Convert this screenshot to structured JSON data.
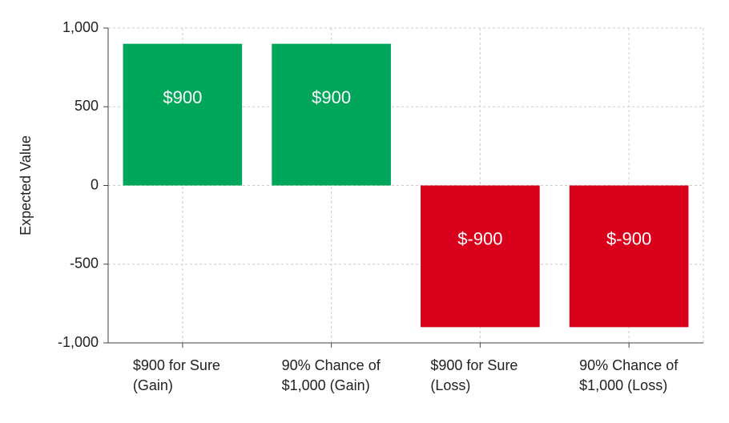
{
  "chart_data": {
    "type": "bar",
    "ylabel": "Expected Value",
    "xlabel": "",
    "ylim": [
      -1000,
      1000
    ],
    "yticks": [
      1000,
      500,
      0,
      -500,
      -1000
    ],
    "ytick_labels": [
      "1,000",
      "500",
      "0",
      "-500",
      "-1,000"
    ],
    "grid": true,
    "categories": [
      [
        "$900 for Sure",
        "(Gain)"
      ],
      [
        "90% Chance of",
        "$1,000 (Gain)"
      ],
      [
        "$900 for Sure",
        "(Loss)"
      ],
      [
        "90% Chance of",
        "$1,000 (Loss)"
      ]
    ],
    "values": [
      900,
      900,
      -900,
      -900
    ],
    "data_labels": [
      "$900",
      "$900",
      "$-900",
      "$-900"
    ],
    "colors": [
      "#00a65a",
      "#00a65a",
      "#d9001b",
      "#d9001b"
    ]
  }
}
